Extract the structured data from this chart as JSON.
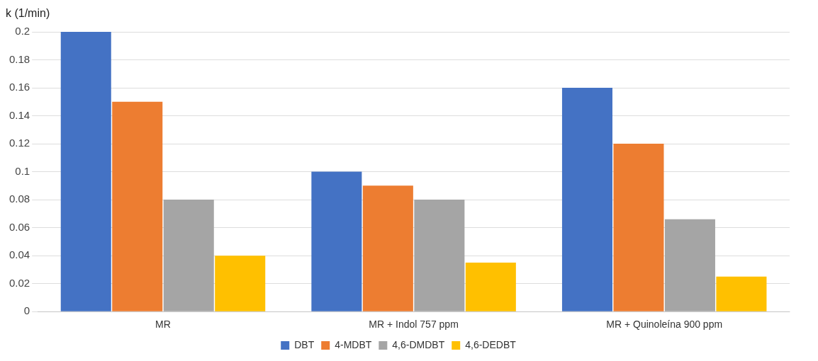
{
  "chart_data": {
    "type": "bar",
    "ylabel": "k (1/min)",
    "categories": [
      "MR",
      "MR + Indol 757 ppm",
      "MR + Quinoleína 900 ppm"
    ],
    "series": [
      {
        "name": "DBT",
        "color": "#4472c4",
        "values": [
          0.2,
          0.1,
          0.16
        ]
      },
      {
        "name": "4-MDBT",
        "color": "#ed7d31",
        "values": [
          0.15,
          0.09,
          0.12
        ]
      },
      {
        "name": "4,6-DMDBT",
        "color": "#a5a5a5",
        "values": [
          0.08,
          0.08,
          0.066
        ]
      },
      {
        "name": "4,6-DEDBT",
        "color": "#ffc000",
        "values": [
          0.04,
          0.035,
          0.025
        ]
      }
    ],
    "ylim": [
      0,
      0.2
    ],
    "yticks": [
      0,
      0.02,
      0.04,
      0.06,
      0.08,
      0.1,
      0.12,
      0.14,
      0.16,
      0.18,
      0.2
    ],
    "grid": "y",
    "legend": "bottom"
  }
}
